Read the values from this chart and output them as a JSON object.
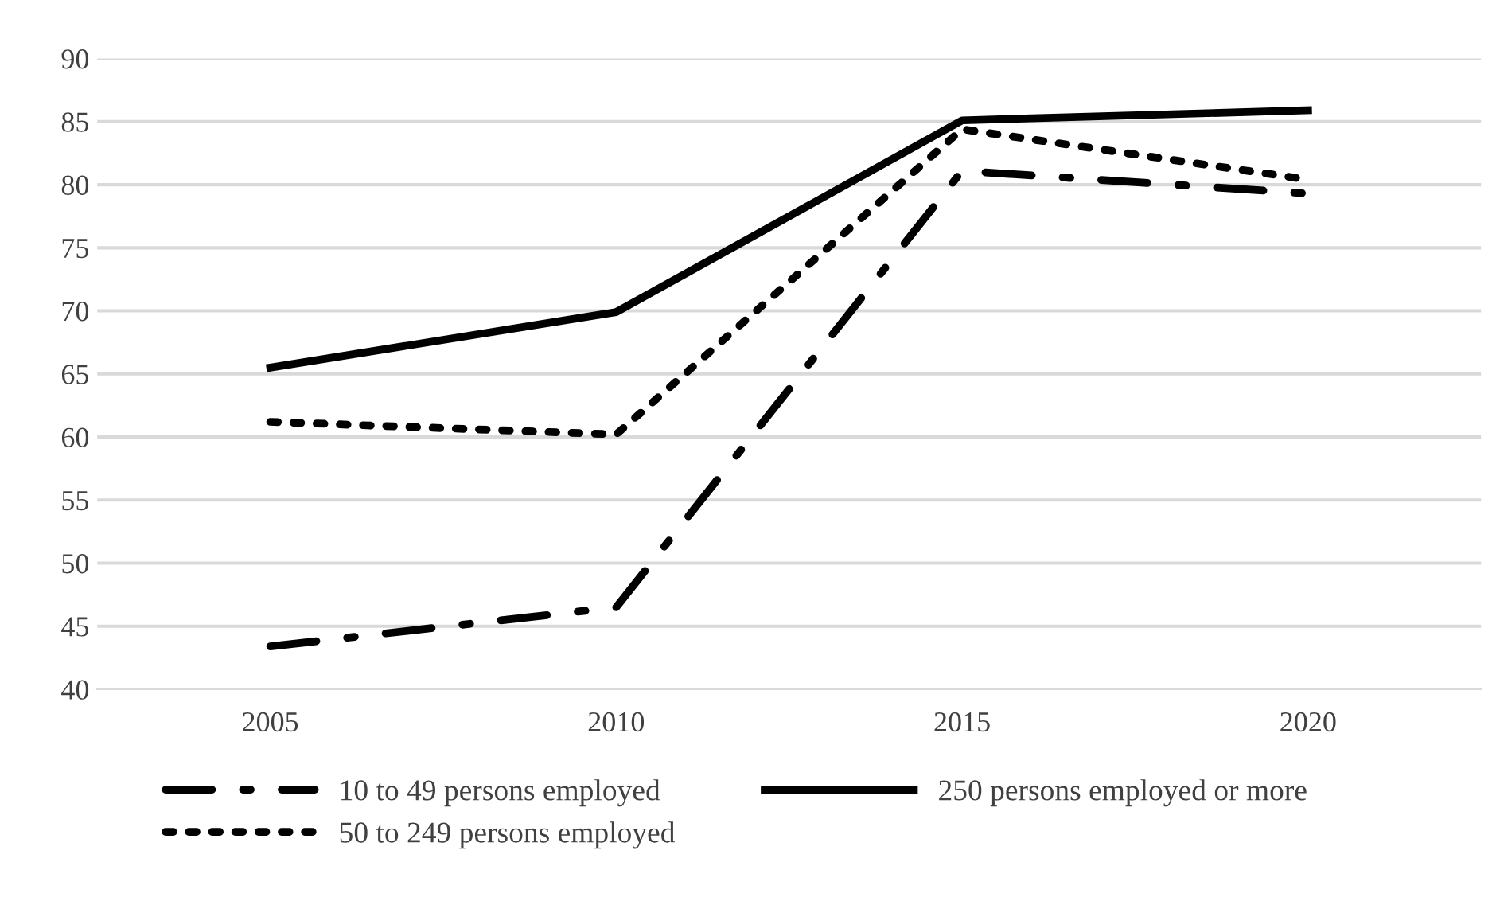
{
  "chart_data": {
    "type": "line",
    "categories": [
      "2005",
      "2010",
      "2015",
      "2020"
    ],
    "series": [
      {
        "name": "10 to 49 persons employed",
        "color": "#000000",
        "line_style": "dashed",
        "values": [
          43.4,
          46.5,
          81.1,
          79.3
        ]
      },
      {
        "name": "50 to 249 persons employed",
        "color": "#000000",
        "line_style": "dotted",
        "values": [
          61.2,
          60.2,
          84.4,
          80.4
        ]
      },
      {
        "name": "250 persons employed or more",
        "color": "#000000",
        "line_style": "solid",
        "values": [
          65.5,
          69.9,
          85.1,
          85.9
        ]
      }
    ],
    "ylim": [
      40,
      90
    ],
    "yticks": [
      40,
      45,
      50,
      55,
      60,
      65,
      70,
      75,
      80,
      85,
      90
    ],
    "grid": "y",
    "legend": "bottom",
    "marker": "none"
  }
}
